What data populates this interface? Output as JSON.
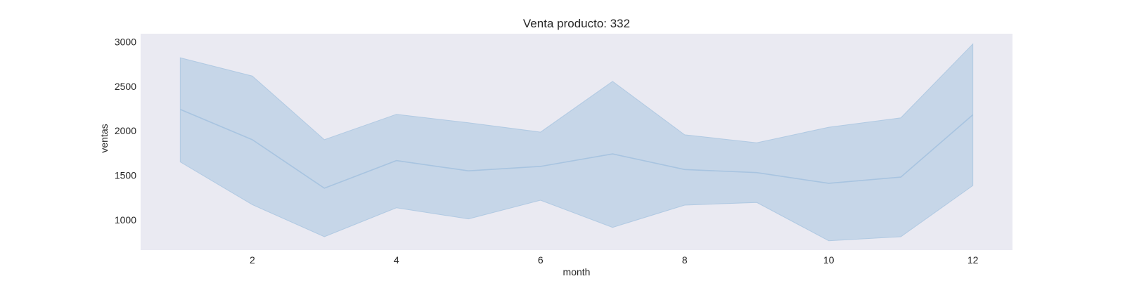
{
  "chart_data": {
    "type": "line",
    "title": "Venta producto: 332",
    "xlabel": "month",
    "ylabel": "ventas",
    "xlim": [
      0.45,
      12.55
    ],
    "ylim": [
      660,
      3090
    ],
    "xticks": [
      2,
      4,
      6,
      8,
      10,
      12
    ],
    "yticks": [
      1000,
      1500,
      2000,
      2500,
      3000
    ],
    "grid": false,
    "background": "#eaeaf2",
    "series": [
      {
        "color": "#a8c4e0",
        "x": [
          1,
          2,
          3,
          4,
          5,
          6,
          7,
          8,
          9,
          10,
          11,
          12
        ],
        "mean": [
          2240,
          1900,
          1355,
          1665,
          1550,
          1600,
          1740,
          1565,
          1530,
          1410,
          1480,
          2180
        ],
        "upper": [
          2820,
          2615,
          1900,
          2185,
          2090,
          1985,
          2555,
          1955,
          1865,
          2040,
          2145,
          2975
        ],
        "lower": [
          1650,
          1170,
          810,
          1135,
          1010,
          1220,
          915,
          1165,
          1195,
          765,
          810,
          1385
        ]
      }
    ]
  }
}
